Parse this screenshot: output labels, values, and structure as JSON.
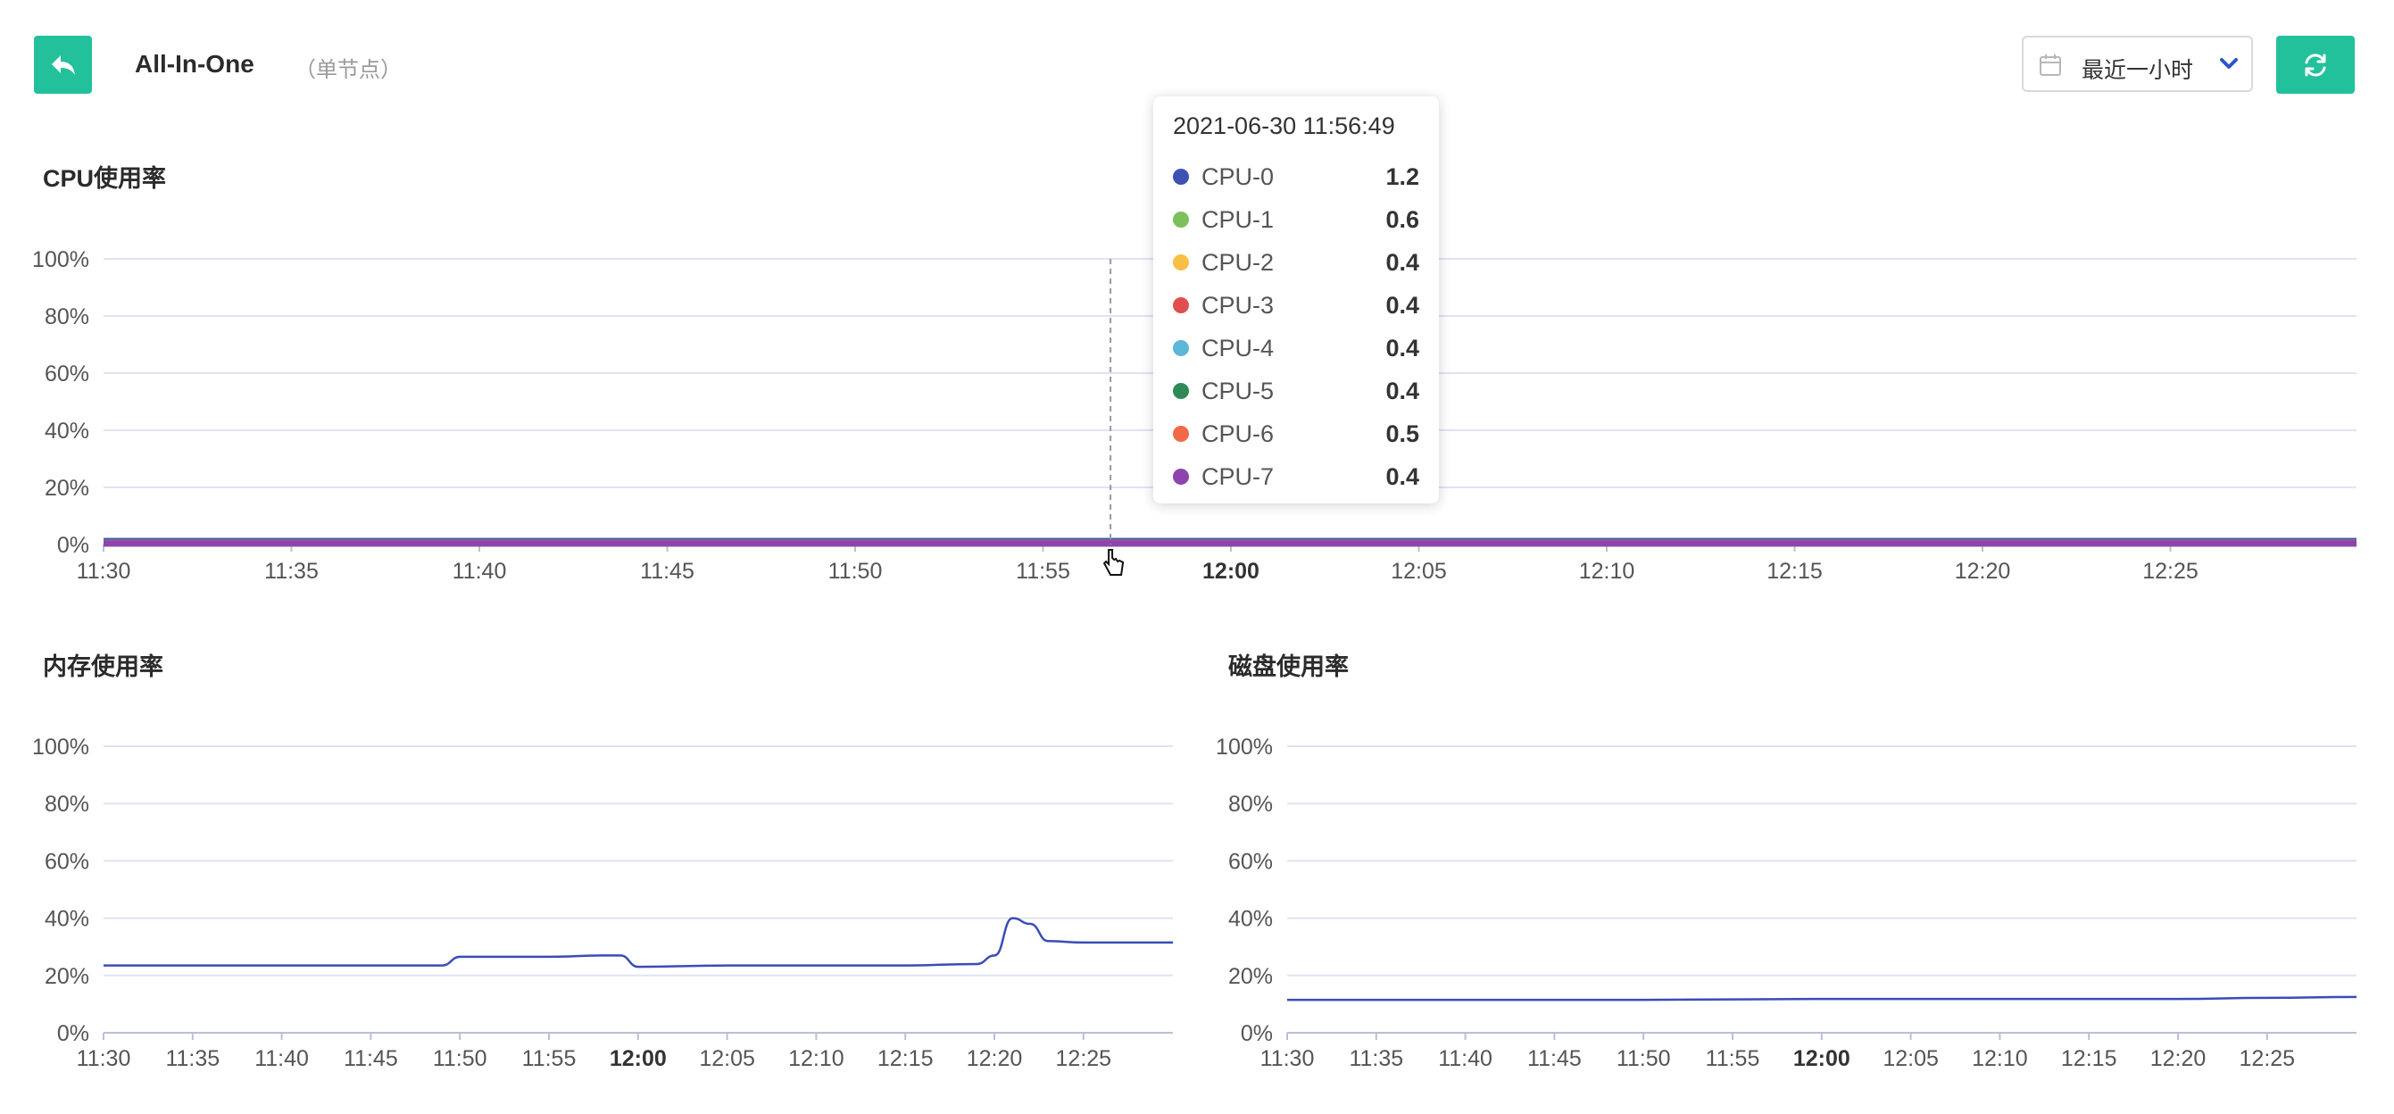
{
  "header": {
    "title": "All-In-One",
    "subtitle": "（单节点）",
    "time_range": "最近一小时"
  },
  "colors": {
    "accent": "#22c19b",
    "grid": "#dfe3f5",
    "memory_line": "#3a4cb8",
    "disk_line": "#3a4cb8"
  },
  "icons": {
    "back": "back-arrow-icon",
    "calendar": "calendar-icon",
    "dropdown": "chevron-down-icon",
    "refresh": "refresh-icon"
  },
  "charts": {
    "cpu": {
      "title": "CPU使用率"
    },
    "memory": {
      "title": "内存使用率"
    },
    "disk": {
      "title": "磁盘使用率"
    }
  },
  "tooltip": {
    "time": "2021-06-30 11:56:49",
    "rows": [
      {
        "name": "CPU-0",
        "value": "1.2",
        "color": "#3f51b5"
      },
      {
        "name": "CPU-1",
        "value": "0.6",
        "color": "#7cc05d"
      },
      {
        "name": "CPU-2",
        "value": "0.4",
        "color": "#f7c045"
      },
      {
        "name": "CPU-3",
        "value": "0.4",
        "color": "#e04f4f"
      },
      {
        "name": "CPU-4",
        "value": "0.4",
        "color": "#5cb6d8"
      },
      {
        "name": "CPU-5",
        "value": "0.4",
        "color": "#2e8b57"
      },
      {
        "name": "CPU-6",
        "value": "0.5",
        "color": "#f26a45"
      },
      {
        "name": "CPU-7",
        "value": "0.4",
        "color": "#8e44ad"
      }
    ]
  },
  "chart_data": [
    {
      "type": "line",
      "title": "CPU使用率",
      "ylim": [
        0,
        100
      ],
      "y_ticks": [
        "100%",
        "80%",
        "60%",
        "40%",
        "20%",
        "0%"
      ],
      "x_ticks": [
        "11:30",
        "11:35",
        "11:40",
        "11:45",
        "11:50",
        "11:55",
        "12:00",
        "12:05",
        "12:10",
        "12:15",
        "12:20",
        "12:25"
      ],
      "x_bold_tick": "12:00",
      "grid": true,
      "series": [
        {
          "name": "CPU-0",
          "x": [
            "11:30",
            "12:30"
          ],
          "y": [
            1.2,
            1.2
          ]
        },
        {
          "name": "CPU-1",
          "x": [
            "11:30",
            "12:30"
          ],
          "y": [
            0.6,
            0.6
          ]
        },
        {
          "name": "CPU-2",
          "x": [
            "11:30",
            "12:30"
          ],
          "y": [
            0.4,
            0.4
          ]
        },
        {
          "name": "CPU-3",
          "x": [
            "11:30",
            "12:30"
          ],
          "y": [
            0.4,
            0.4
          ]
        },
        {
          "name": "CPU-4",
          "x": [
            "11:30",
            "12:30"
          ],
          "y": [
            0.4,
            0.4
          ]
        },
        {
          "name": "CPU-5",
          "x": [
            "11:30",
            "12:30"
          ],
          "y": [
            0.4,
            0.4
          ]
        },
        {
          "name": "CPU-6",
          "x": [
            "11:30",
            "12:30"
          ],
          "y": [
            0.5,
            0.5
          ]
        },
        {
          "name": "CPU-7",
          "x": [
            "11:30",
            "12:30"
          ],
          "y": [
            0.4,
            0.4
          ]
        }
      ]
    },
    {
      "type": "line",
      "title": "内存使用率",
      "ylim": [
        0,
        100
      ],
      "y_ticks": [
        "100%",
        "80%",
        "60%",
        "40%",
        "20%",
        "0%"
      ],
      "x_ticks": [
        "11:30",
        "11:35",
        "11:40",
        "11:45",
        "11:50",
        "11:55",
        "12:00",
        "12:05",
        "12:10",
        "12:15",
        "12:20",
        "12:25"
      ],
      "x_bold_tick": "12:00",
      "grid": true,
      "series": [
        {
          "x": [
            "11:30",
            "11:35",
            "11:40",
            "11:45",
            "11:49",
            "11:50",
            "11:55",
            "11:58",
            "11:59",
            "12:00",
            "12:05",
            "12:10",
            "12:15",
            "12:19",
            "12:20",
            "12:21",
            "12:22",
            "12:23",
            "12:25",
            "12:30"
          ],
          "y": [
            23.5,
            23.5,
            23.5,
            23.5,
            23.5,
            26.5,
            26.5,
            27,
            27,
            23,
            23.5,
            23.5,
            23.5,
            24,
            27,
            40,
            38,
            32,
            31.5,
            31.5
          ]
        }
      ]
    },
    {
      "type": "line",
      "title": "磁盘使用率",
      "ylim": [
        0,
        100
      ],
      "y_ticks": [
        "100%",
        "80%",
        "60%",
        "40%",
        "20%",
        "0%"
      ],
      "x_ticks": [
        "11:30",
        "11:35",
        "11:40",
        "11:45",
        "11:50",
        "11:55",
        "12:00",
        "12:05",
        "12:10",
        "12:15",
        "12:20",
        "12:25"
      ],
      "x_bold_tick": "12:00",
      "grid": true,
      "series": [
        {
          "x": [
            "11:30",
            "11:50",
            "12:00",
            "12:15",
            "12:20",
            "12:25",
            "12:30"
          ],
          "y": [
            11.5,
            11.5,
            11.8,
            11.8,
            11.8,
            12.2,
            12.5
          ]
        }
      ]
    }
  ]
}
